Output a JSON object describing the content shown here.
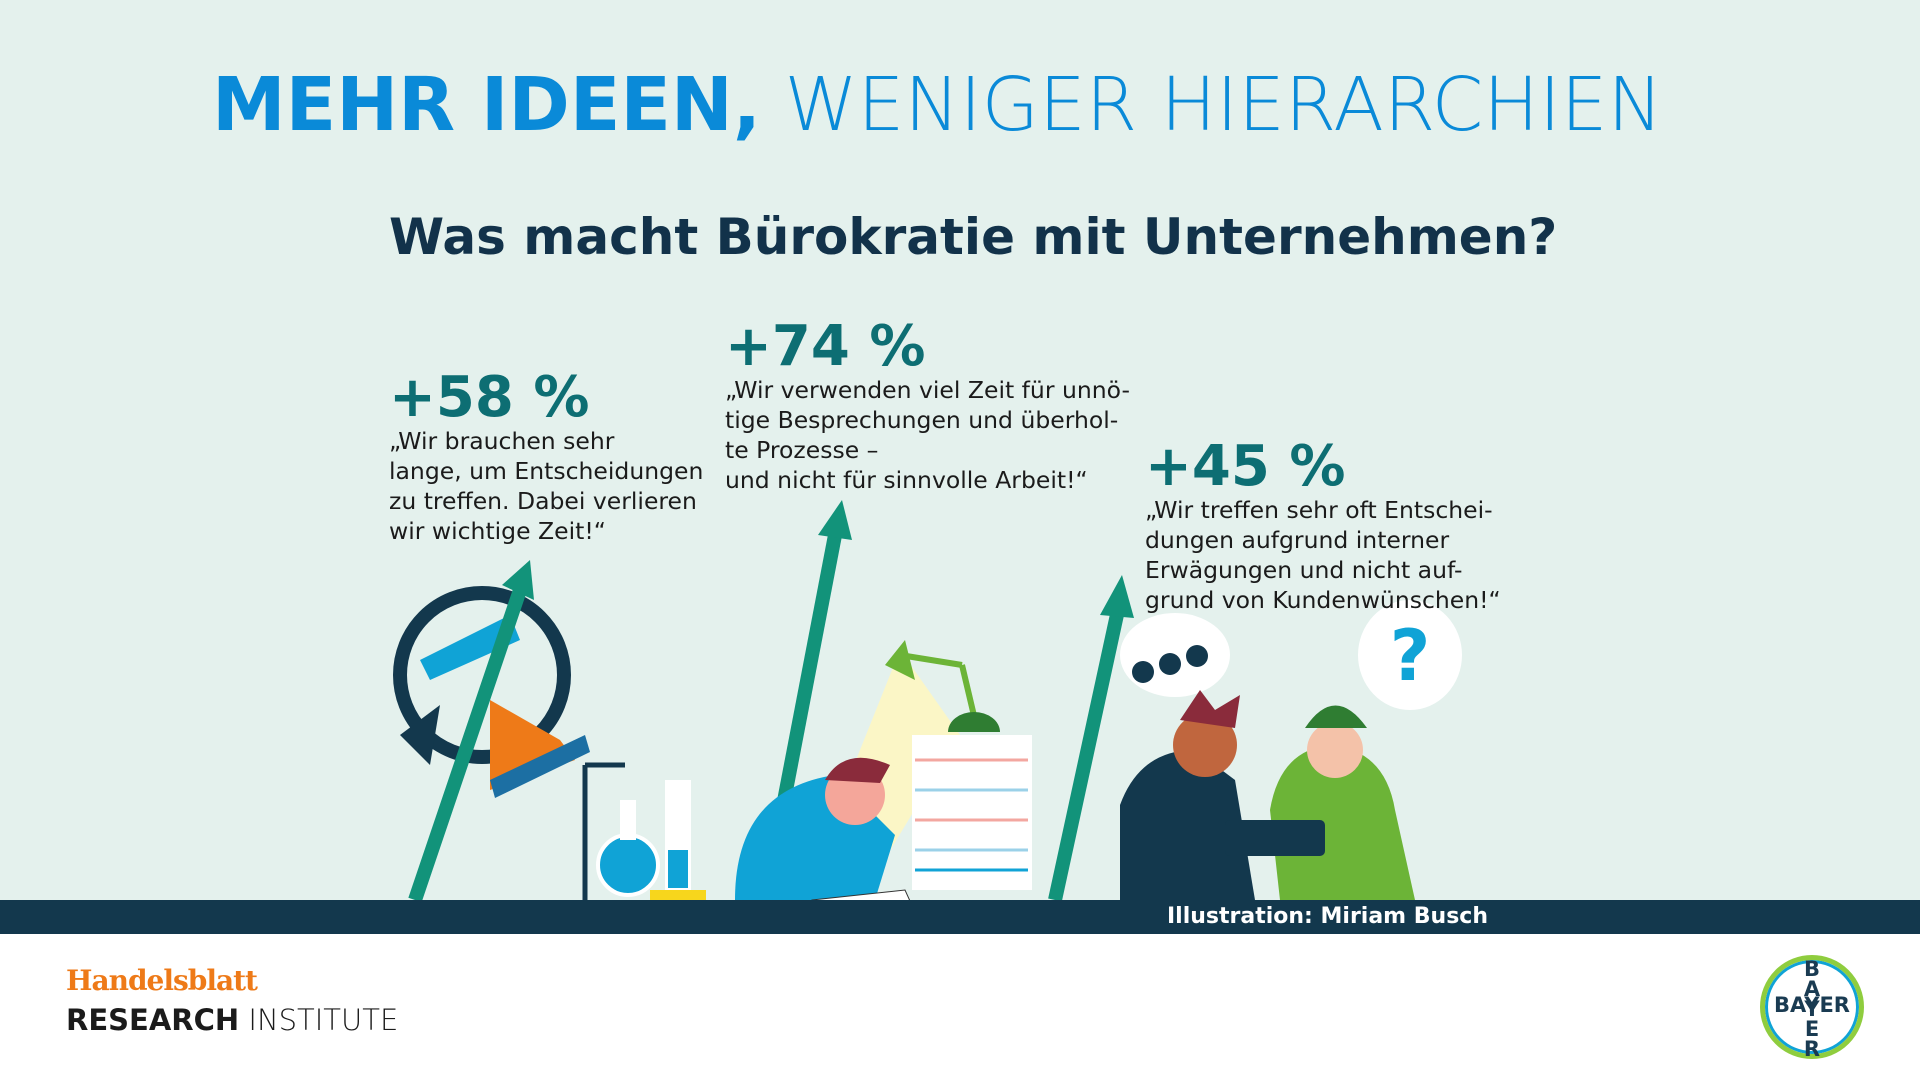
{
  "title": {
    "bold": "MEHR IDEEN,",
    "light": "WENIGER HIERARCHIEN"
  },
  "question": "Was macht Bürokratie mit Unternehmen?",
  "stats": [
    {
      "value": "+58 %",
      "lines": [
        "„Wir brauchen sehr",
        "lange, um Entscheidungen",
        "zu treffen. Dabei verlieren",
        "wir wichtige Zeit!“"
      ]
    },
    {
      "value": "+74 %",
      "lines": [
        "„Wir verwenden viel Zeit für unnö-",
        "tige Besprechungen und überhol-",
        "te Prozesse –",
        "und nicht für sinnvolle Arbeit!“"
      ]
    },
    {
      "value": "+45 %",
      "lines": [
        "„Wir treffen sehr oft Entschei-",
        "dungen aufgrund interner",
        "Erwägungen und nicht auf-",
        "grund von Kundenwünschen!“"
      ]
    }
  ],
  "credit": "Illustration: Miriam Busch",
  "footer": {
    "brand": "Handelsblatt",
    "institute_bold": "RESEARCH",
    "institute_light": "INSTITUTE"
  },
  "logo": {
    "horizontal": "BAYER",
    "vertical": "BAYER"
  }
}
